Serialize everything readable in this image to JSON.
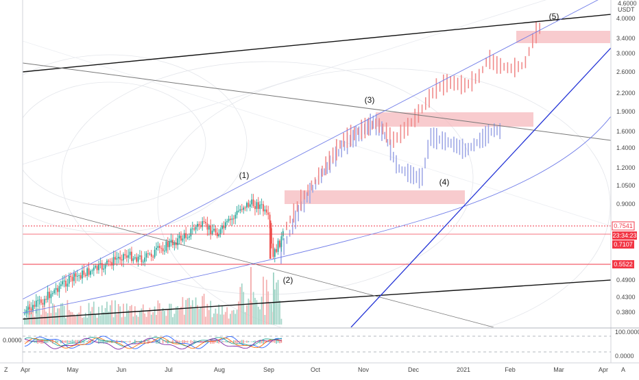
{
  "price_axis": {
    "currency": "USDT",
    "top_tick": "4.6000",
    "ticks": [
      "4.0000",
      "3.4000",
      "3.0000",
      "2.6000",
      "2.2000",
      "1.9000",
      "1.6000",
      "1.4000",
      "1.2000",
      "1.0500",
      "0.9000",
      "0.4900",
      "0.4300",
      "0.3800"
    ],
    "badges": [
      {
        "text": "0.7541",
        "color": "#f23645",
        "filled": false
      },
      {
        "text": "23:34:23",
        "color": "#f23645",
        "filled": true
      },
      {
        "text": "0.7107",
        "color": "#f23645",
        "filled": true
      },
      {
        "text": "0.5522",
        "color": "#f23645",
        "filled": true
      }
    ]
  },
  "time_axis": {
    "labels": [
      "Apr",
      "May",
      "Jun",
      "Jul",
      "Aug",
      "Sep",
      "Oct",
      "Nov",
      "Dec",
      "2021",
      "Feb",
      "Mar",
      "Apr"
    ],
    "corner_left": "Z",
    "corner_right": "A"
  },
  "wave_labels": [
    "(1)",
    "(2)",
    "(3)",
    "(4)",
    "(5)"
  ],
  "oscillator": {
    "left_value": "0.0000",
    "ticks": [
      "100.0000",
      "0.0000"
    ]
  },
  "colors": {
    "bull": "#26a69a",
    "bear": "#ef5350",
    "ghost_blue": "#9fa8e6",
    "ghost_red": "#f08a8a",
    "zone": "#f5b5b9",
    "trend_blue": "#2434d6",
    "channel_blue": "#6f7ce8"
  },
  "chart_data": {
    "type": "candlestick",
    "title": "",
    "x_range": [
      "Apr 2020",
      "Apr 2021"
    ],
    "y_scale": "log",
    "y_range": [
      0.34,
      4.6
    ],
    "price_candles": {
      "start_month": "Apr 2020",
      "end_month": "Sep 2020",
      "approx_close_path": [
        [
          "Apr",
          0.37
        ],
        [
          "May",
          0.42
        ],
        [
          "Jun",
          0.5
        ],
        [
          "Jul",
          0.66
        ],
        [
          "Aug",
          0.72
        ],
        [
          "Aug-end",
          0.97
        ],
        [
          "Sep-start",
          0.56
        ],
        [
          "Sep",
          0.75
        ]
      ]
    },
    "horizontal_levels": [
      0.7541,
      0.7107,
      0.5522
    ],
    "projection_ghost_paths": [
      {
        "name": "",
        "color": "ghost_blue",
        "points": [
          [
            "Sep",
            0.58
          ],
          [
            "Oct",
            1.1
          ],
          [
            "Nov",
            1.75
          ],
          [
            "Dec",
            1.1
          ],
          [
            "Jan",
            1.7
          ],
          [
            "Feb",
            1.65
          ]
        ]
      },
      {
        "name": "",
        "color": "ghost_red",
        "points": [
          [
            "Sep",
            0.72
          ],
          [
            "Oct",
            1.5
          ],
          [
            "Nov",
            1.7
          ],
          [
            "Dec",
            2.1
          ],
          [
            "Jan",
            2.5
          ],
          [
            "Feb",
            2.75
          ],
          [
            "Feb-end",
            4.05
          ]
        ]
      }
    ],
    "zones": [
      {
        "from": "Sep",
        "to": "Dec",
        "low": 0.9,
        "high": 1.02
      },
      {
        "from": "Nov",
        "to": "Feb",
        "low": 1.73,
        "high": 1.92
      },
      {
        "from": "Feb",
        "to": "Apr",
        "low": 3.25,
        "high": 3.55
      }
    ],
    "wave_points": [
      {
        "label": "(1)",
        "month": "Aug",
        "price": 0.97
      },
      {
        "label": "(2)",
        "month": "Sep",
        "price": 0.55
      },
      {
        "label": "(3)",
        "month": "Nov",
        "price": 1.8
      },
      {
        "label": "(4)",
        "month": "Dec",
        "price": 1.05
      },
      {
        "label": "(5)",
        "month": "Feb",
        "price": 3.9
      }
    ],
    "grid": true
  }
}
